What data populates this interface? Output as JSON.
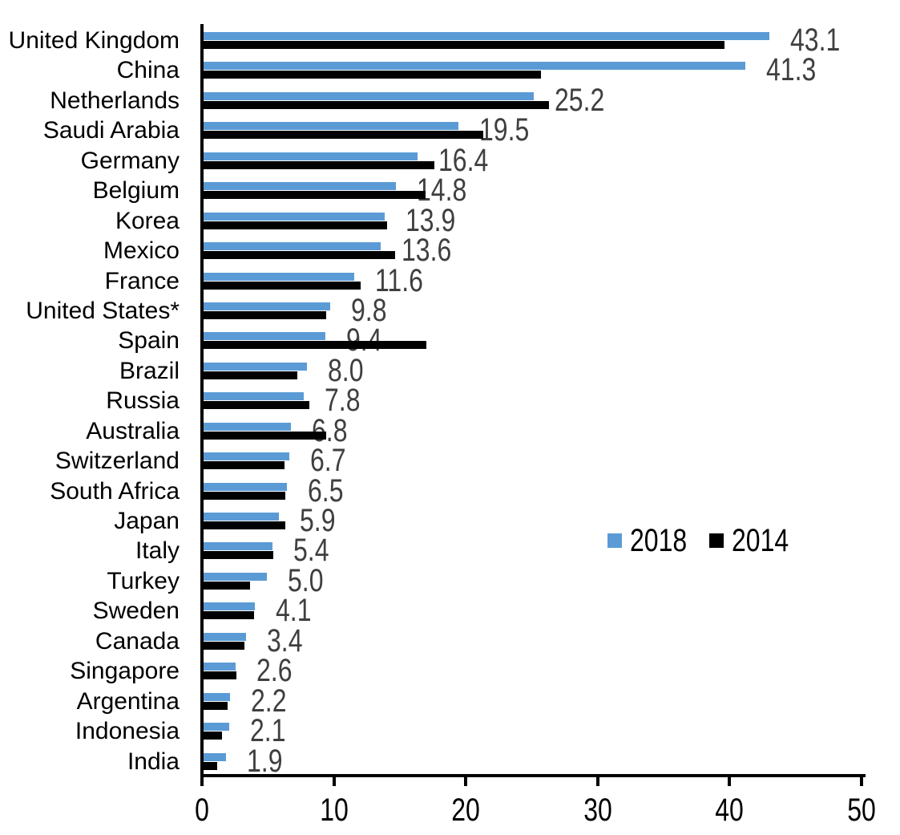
{
  "chart_data": {
    "type": "bar",
    "orientation": "horizontal",
    "title": "",
    "xlabel": "",
    "ylabel": "",
    "xlim": [
      0,
      50
    ],
    "x_ticks": [
      "0",
      "10",
      "20",
      "30",
      "40",
      "50"
    ],
    "grid": false,
    "legend_position": "center-right",
    "categories": [
      "United Kingdom",
      "China",
      "Netherlands",
      "Saudi Arabia",
      "Germany",
      "Belgium",
      "Korea",
      "Mexico",
      "France",
      "United States*",
      "Spain",
      "Brazil",
      "Russia",
      "Australia",
      "Switzerland",
      "South Africa",
      "Japan",
      "Italy",
      "Turkey",
      "Sweden",
      "Canada",
      "Singapore",
      "Argentina",
      "Indonesia",
      "India"
    ],
    "series": [
      {
        "name": "2018",
        "color": "#5B9BD5",
        "values": [
          43.1,
          41.3,
          25.2,
          19.5,
          16.4,
          14.8,
          13.9,
          13.6,
          11.6,
          9.8,
          9.4,
          8.0,
          7.8,
          6.8,
          6.7,
          6.5,
          5.9,
          5.4,
          5.0,
          4.1,
          3.4,
          2.6,
          2.2,
          2.1,
          1.9
        ]
      },
      {
        "name": "2014",
        "color": "#000000",
        "values": [
          39.7,
          25.8,
          26.4,
          21.4,
          17.7,
          17.0,
          14.1,
          14.7,
          12.1,
          9.5,
          17.1,
          7.3,
          8.2,
          9.5,
          6.3,
          6.4,
          6.4,
          5.5,
          3.7,
          4.0,
          3.3,
          2.7,
          2.0,
          1.6,
          1.2
        ]
      }
    ],
    "value_labels": [
      "43.1",
      "41.3",
      "25.2",
      "19.5",
      "16.4",
      "14.8",
      "13.9",
      "13.6",
      "11.6",
      "9.8",
      "9.4",
      "8.0",
      "7.8",
      "6.8",
      "6.7",
      "6.5",
      "5.9",
      "5.4",
      "5.0",
      "4.1",
      "3.4",
      "2.6",
      "2.2",
      "2.1",
      "1.9"
    ]
  },
  "colors": {
    "bar_2018": "#5B9BD5",
    "bar_2014": "#000000",
    "value_label": "#3f3f3f",
    "axis": "#000000"
  },
  "legend": {
    "entries": [
      {
        "label": "2018",
        "color": "#5B9BD5"
      },
      {
        "label": "2014",
        "color": "#000000"
      }
    ]
  }
}
